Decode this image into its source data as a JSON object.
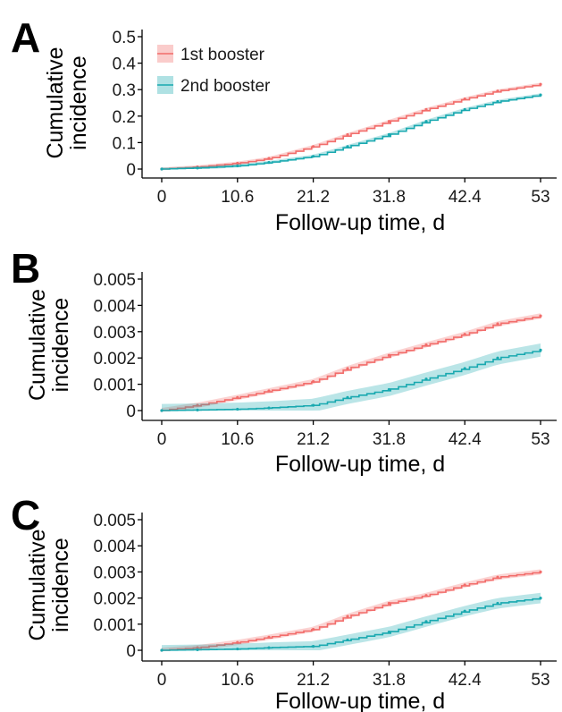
{
  "colors": {
    "series1": "#f26d6b",
    "series2": "#19a9b0"
  },
  "legend": [
    {
      "label": "1st booster"
    },
    {
      "label": "2nd booster"
    }
  ],
  "chart_data": [
    {
      "panel": "A",
      "type": "line",
      "xlabel": "Follow-up time, d",
      "ylabel": [
        "Cumulative",
        "incidence"
      ],
      "x_ticks": [
        "0",
        "10.6",
        "21.2",
        "31.8",
        "42.4",
        "53"
      ],
      "y_ticks": [
        "0",
        "0.1",
        "0.2",
        "0.3",
        "0.4",
        "0.5"
      ],
      "xlim": [
        0,
        53
      ],
      "ylim": [
        0,
        0.5
      ],
      "legend_position": "top-left",
      "x": [
        0,
        5,
        10.6,
        15,
        21.2,
        26,
        31.8,
        37,
        42.4,
        47,
        53
      ],
      "series": [
        {
          "name": "1st booster",
          "values": [
            0,
            0.008,
            0.022,
            0.04,
            0.085,
            0.13,
            0.18,
            0.225,
            0.265,
            0.295,
            0.32
          ],
          "ci": 0.006
        },
        {
          "name": "2nd booster",
          "values": [
            0,
            0.004,
            0.012,
            0.025,
            0.048,
            0.085,
            0.13,
            0.18,
            0.225,
            0.255,
            0.28
          ],
          "ci": 0.006
        }
      ]
    },
    {
      "panel": "B",
      "type": "line",
      "xlabel": "Follow-up time, d",
      "ylabel": [
        "Cumulative",
        "incidence"
      ],
      "x_ticks": [
        "0",
        "10.6",
        "21.2",
        "31.8",
        "42.4",
        "53"
      ],
      "y_ticks": [
        "0",
        "0.001",
        "0.002",
        "0.003",
        "0.004",
        "0.005"
      ],
      "xlim": [
        0,
        53
      ],
      "ylim": [
        0,
        0.005
      ],
      "x": [
        0,
        5,
        10.6,
        15,
        21.2,
        26,
        31.8,
        37,
        42.4,
        47,
        53
      ],
      "series": [
        {
          "name": "1st booster",
          "values": [
            0,
            0.0002,
            0.0005,
            0.00075,
            0.0011,
            0.0016,
            0.0021,
            0.0025,
            0.0029,
            0.0033,
            0.0036
          ],
          "ci": 0.0001
        },
        {
          "name": "2nd booster",
          "values": [
            0,
            2e-05,
            5e-05,
            0.0001,
            0.0002,
            0.0005,
            0.0008,
            0.0012,
            0.0016,
            0.002,
            0.0023
          ],
          "ci": 0.00025
        }
      ]
    },
    {
      "panel": "C",
      "type": "line",
      "xlabel": "Follow-up time, d",
      "ylabel": [
        "Cumulative",
        "incidence"
      ],
      "x_ticks": [
        "0",
        "10.6",
        "21.2",
        "31.8",
        "42.4",
        "53"
      ],
      "y_ticks": [
        "0",
        "0.001",
        "0.002",
        "0.003",
        "0.004",
        "0.005"
      ],
      "xlim": [
        0,
        53
      ],
      "ylim": [
        0,
        0.005
      ],
      "x": [
        0,
        5,
        10.6,
        15,
        21.2,
        26,
        31.8,
        37,
        42.4,
        47,
        53
      ],
      "series": [
        {
          "name": "1st booster",
          "values": [
            0,
            0.0001,
            0.0003,
            0.0005,
            0.0008,
            0.0013,
            0.0018,
            0.0021,
            0.0025,
            0.0028,
            0.003
          ],
          "ci": 0.0001
        },
        {
          "name": "2nd booster",
          "values": [
            0,
            2e-05,
            5e-05,
            0.0001,
            0.00015,
            0.0004,
            0.0007,
            0.0011,
            0.0015,
            0.0018,
            0.002
          ],
          "ci": 0.0002
        }
      ]
    }
  ]
}
